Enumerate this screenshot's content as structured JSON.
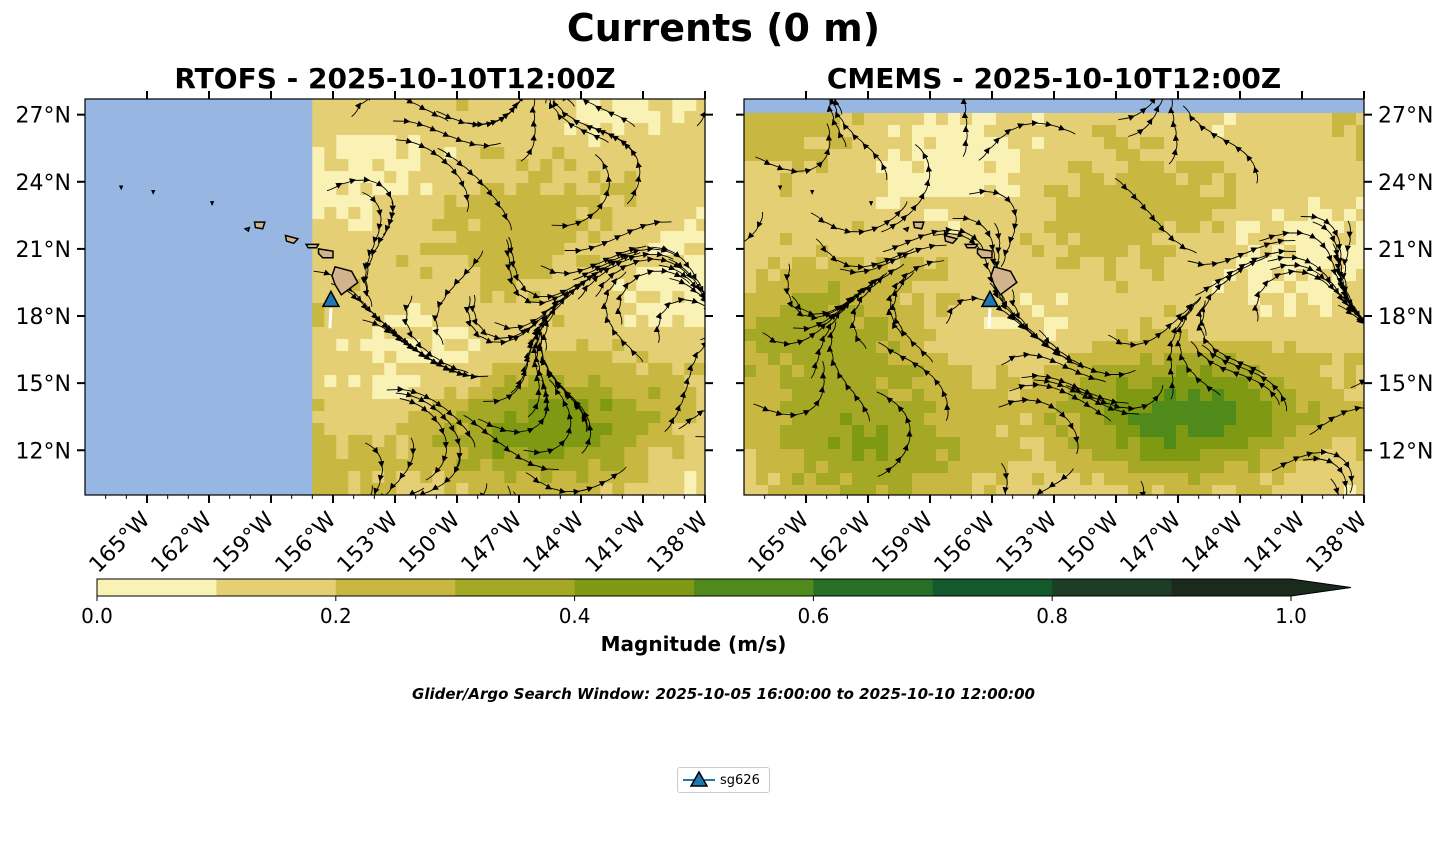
{
  "title": "Currents (0 m)",
  "panels": [
    {
      "title": "RTOFS - 2025-10-10T12:00Z",
      "y_axis_side": "left",
      "model_coverage_from_lon": -157.0
    },
    {
      "title": "CMEMS - 2025-10-10T12:00Z",
      "y_axis_side": "right",
      "model_coverage_from_lon": -168.0
    }
  ],
  "axes": {
    "lon_range": [
      -168.0,
      -138.0
    ],
    "lat_range": [
      10.0,
      27.7
    ],
    "lon_ticks": [
      -165,
      -162,
      -159,
      -156,
      -153,
      -150,
      -147,
      -144,
      -141,
      -138
    ],
    "lon_tick_labels": [
      "165°W",
      "162°W",
      "159°W",
      "156°W",
      "153°W",
      "150°W",
      "147°W",
      "144°W",
      "141°W",
      "138°W"
    ],
    "lat_ticks": [
      27,
      24,
      21,
      18,
      15,
      12
    ],
    "lat_tick_labels": [
      "27°N",
      "24°N",
      "21°N",
      "18°N",
      "15°N",
      "12°N"
    ]
  },
  "glider": {
    "name": "sg626",
    "lon": -156.1,
    "lat": 18.7,
    "color": "#1f77b4"
  },
  "colorbar": {
    "label": "Magnitude (m/s)",
    "levels": [
      0.0,
      0.1,
      0.2,
      0.3,
      0.4,
      0.5,
      0.6,
      0.7,
      0.8,
      0.9,
      1.0
    ],
    "tick_values": [
      0.0,
      0.2,
      0.4,
      0.6,
      0.8,
      1.0
    ],
    "tick_labels": [
      "0.0",
      "0.2",
      "0.4",
      "0.6",
      "0.8",
      "1.0"
    ],
    "colors": [
      "#faf2b4",
      "#e4cf74",
      "#c8b842",
      "#a5a824",
      "#7f9a12",
      "#4f8a1a",
      "#276f27",
      "#12592c",
      "#1c3d26",
      "#1a2a1c"
    ],
    "extend": "max"
  },
  "colors": {
    "ocean": "#97b6e1",
    "land": "#d2b48c"
  },
  "search_window": "Glider/Argo Search Window: 2025-10-05 16:00:00 to 2025-10-10 12:00:00",
  "legend": {
    "label": "sg626"
  }
}
